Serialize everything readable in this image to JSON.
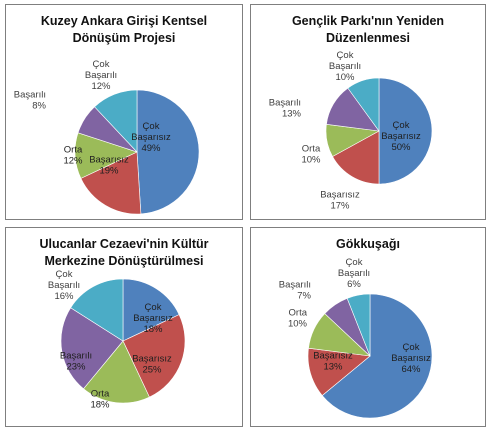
{
  "chart_data": [
    {
      "type": "pie",
      "title_lines": [
        "Kuzey Ankara Girişi Kentsel",
        "Dönüşüm Projesi"
      ],
      "slices": [
        {
          "label": [
            "Çok",
            "Başarısız"
          ],
          "pct_text": "49%",
          "value": 49,
          "color": "#4f81bd",
          "label_color": "#1f1f1f"
        },
        {
          "label": [
            "Başarısız"
          ],
          "pct_text": "19%",
          "value": 19,
          "color": "#c0504d",
          "label_color": "#1f1f1f"
        },
        {
          "label": [
            "Orta"
          ],
          "pct_text": "12%",
          "value": 12,
          "color": "#9bbb59",
          "label_color": "#1f1f1f"
        },
        {
          "label": [
            "Başarılı"
          ],
          "pct_text": "8%",
          "value": 8,
          "color": "#8064a2",
          "label_color": "#404040"
        },
        {
          "label": [
            "Çok",
            "Başarılı"
          ],
          "pct_text": "12%",
          "value": 12,
          "color": "#4bacc6",
          "label_color": "#404040"
        }
      ]
    },
    {
      "type": "pie",
      "title_lines": [
        "Gençlik Parkı'nın Yeniden",
        "Düzenlenmesi"
      ],
      "slices": [
        {
          "label": [
            "Çok",
            "Başarısız"
          ],
          "pct_text": "50%",
          "value": 50,
          "color": "#4f81bd",
          "label_color": "#1f1f1f"
        },
        {
          "label": [
            "Başarısız"
          ],
          "pct_text": "17%",
          "value": 17,
          "color": "#c0504d",
          "label_color": "#404040"
        },
        {
          "label": [
            "Orta"
          ],
          "pct_text": "10%",
          "value": 10,
          "color": "#9bbb59",
          "label_color": "#404040"
        },
        {
          "label": [
            "Başarılı"
          ],
          "pct_text": "13%",
          "value": 13,
          "color": "#8064a2",
          "label_color": "#404040"
        },
        {
          "label": [
            "Çok",
            "Başarılı"
          ],
          "pct_text": "10%",
          "value": 10,
          "color": "#4bacc6",
          "label_color": "#404040"
        }
      ]
    },
    {
      "type": "pie",
      "title_lines": [
        "Ulucanlar Cezaevi'nin Kültür",
        "Merkezine Dönüştürülmesi"
      ],
      "slices": [
        {
          "label": [
            "Çok",
            "Başarısız"
          ],
          "pct_text": "18%",
          "value": 18,
          "color": "#4f81bd",
          "label_color": "#1f1f1f"
        },
        {
          "label": [
            "Başarısız"
          ],
          "pct_text": "25%",
          "value": 25,
          "color": "#c0504d",
          "label_color": "#1f1f1f"
        },
        {
          "label": [
            "Orta"
          ],
          "pct_text": "18%",
          "value": 18,
          "color": "#9bbb59",
          "label_color": "#1f1f1f"
        },
        {
          "label": [
            "Başarılı"
          ],
          "pct_text": "23%",
          "value": 23,
          "color": "#8064a2",
          "label_color": "#1f1f1f"
        },
        {
          "label": [
            "Çok",
            "Başarılı"
          ],
          "pct_text": "16%",
          "value": 16,
          "color": "#4bacc6",
          "label_color": "#404040"
        }
      ]
    },
    {
      "type": "pie",
      "title_lines": [
        "Gökkuşağı"
      ],
      "slices": [
        {
          "label": [
            "Çok",
            "Başarısız"
          ],
          "pct_text": "64%",
          "value": 64,
          "color": "#4f81bd",
          "label_color": "#1f1f1f"
        },
        {
          "label": [
            "Başarısız"
          ],
          "pct_text": "13%",
          "value": 13,
          "color": "#c0504d",
          "label_color": "#1f1f1f"
        },
        {
          "label": [
            "Orta"
          ],
          "pct_text": "10%",
          "value": 10,
          "color": "#9bbb59",
          "label_color": "#404040"
        },
        {
          "label": [
            "Başarılı"
          ],
          "pct_text": "7%",
          "value": 7,
          "color": "#8064a2",
          "label_color": "#404040"
        },
        {
          "label": [
            "Çok",
            "Başarılı"
          ],
          "pct_text": "6%",
          "value": 6,
          "color": "#4bacc6",
          "label_color": "#404040"
        }
      ]
    }
  ]
}
